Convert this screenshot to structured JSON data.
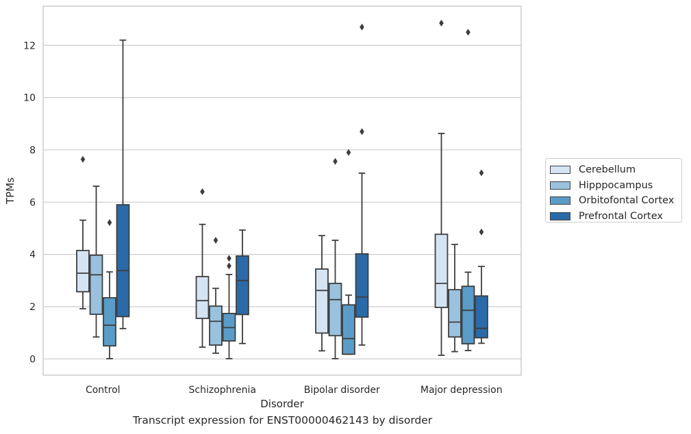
{
  "chart_data": {
    "type": "box",
    "xlabel": "Disorder",
    "ylabel": "TPMs",
    "caption": "Transcript expression for ENST00000462143 by disorder",
    "ylim": [
      -0.62,
      13.5
    ],
    "yticks": [
      0,
      2,
      4,
      6,
      8,
      10,
      12
    ],
    "grid": true,
    "legend_position": "right",
    "categories": [
      "Control",
      "Schizophrenia",
      "Bipolar disorder",
      "Major depression"
    ],
    "series": [
      {
        "name": "Cerebellum",
        "color": "#d4e4f3",
        "boxes": [
          {
            "whislo": 1.92,
            "q1": 2.57,
            "med": 3.28,
            "q3": 4.15,
            "whishi": 5.31,
            "fliers": [
              7.64
            ]
          },
          {
            "whislo": 0.45,
            "q1": 1.55,
            "med": 2.23,
            "q3": 3.15,
            "whishi": 5.15,
            "fliers": [
              6.4
            ]
          },
          {
            "whislo": 0.31,
            "q1": 0.99,
            "med": 2.62,
            "q3": 3.44,
            "whishi": 4.72,
            "fliers": []
          },
          {
            "whislo": 0.14,
            "q1": 1.97,
            "med": 2.89,
            "q3": 4.77,
            "whishi": 8.63,
            "fliers": [
              12.85
            ]
          }
        ]
      },
      {
        "name": "Hipppocampus",
        "color": "#9ac2de",
        "boxes": [
          {
            "whislo": 0.84,
            "q1": 1.71,
            "med": 3.22,
            "q3": 3.97,
            "whishi": 6.61,
            "fliers": []
          },
          {
            "whislo": 0.22,
            "q1": 0.53,
            "med": 1.44,
            "q3": 2.02,
            "whishi": 2.7,
            "fliers": [
              4.54
            ]
          },
          {
            "whislo": 0.01,
            "q1": 0.89,
            "med": 2.27,
            "q3": 2.89,
            "whishi": 4.54,
            "fliers": [
              7.56
            ]
          },
          {
            "whislo": 0.28,
            "q1": 0.84,
            "med": 1.41,
            "q3": 2.65,
            "whishi": 4.38,
            "fliers": []
          }
        ]
      },
      {
        "name": "Orbitofontal Cortex",
        "color": "#5a9cc8",
        "boxes": [
          {
            "whislo": 0.01,
            "q1": 0.5,
            "med": 1.29,
            "q3": 2.34,
            "whishi": 3.33,
            "fliers": [
              5.22
            ]
          },
          {
            "whislo": 0.01,
            "q1": 0.69,
            "med": 1.2,
            "q3": 1.74,
            "whishi": 3.23,
            "fliers": [
              3.56,
              3.85
            ]
          },
          {
            "whislo": 0.18,
            "q1": 0.18,
            "med": 0.78,
            "q3": 2.07,
            "whishi": 2.44,
            "fliers": [
              7.9
            ]
          },
          {
            "whislo": 0.32,
            "q1": 0.58,
            "med": 1.86,
            "q3": 2.78,
            "whishi": 3.32,
            "fliers": [
              12.5
            ]
          }
        ]
      },
      {
        "name": "Prefrontal Cortex",
        "color": "#2b6aa8",
        "boxes": [
          {
            "whislo": 1.16,
            "q1": 1.62,
            "med": 3.38,
            "q3": 5.9,
            "whishi": 12.2,
            "fliers": []
          },
          {
            "whislo": 0.59,
            "q1": 1.7,
            "med": 3.0,
            "q3": 3.94,
            "whishi": 4.93,
            "fliers": []
          },
          {
            "whislo": 0.53,
            "q1": 1.6,
            "med": 2.37,
            "q3": 4.02,
            "whishi": 7.11,
            "fliers": [
              8.7,
              12.7
            ]
          },
          {
            "whislo": 0.6,
            "q1": 0.81,
            "med": 1.17,
            "q3": 2.41,
            "whishi": 3.54,
            "fliers": [
              4.86,
              7.12
            ]
          }
        ]
      }
    ]
  }
}
